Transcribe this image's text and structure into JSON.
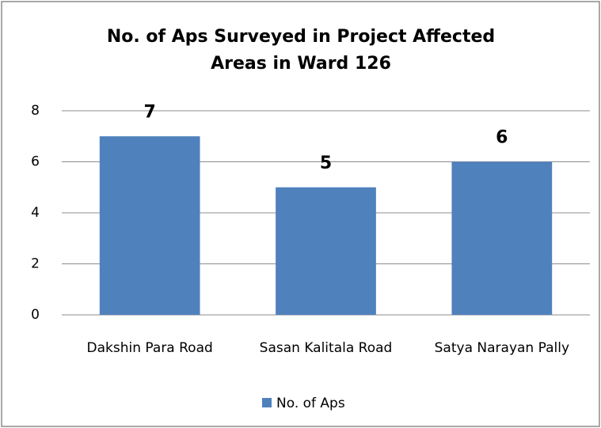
{
  "chart_data": {
    "type": "bar",
    "title": "No. of Aps Surveyed in Project Affected Areas in Ward 126",
    "categories": [
      "Dakshin Para Road",
      "Sasan Kalitala Road",
      "Satya Narayan Pally"
    ],
    "series": [
      {
        "name": "No. of Aps",
        "color": "#4f81bd",
        "values": [
          7,
          5,
          6
        ]
      }
    ],
    "ylim": [
      0,
      8
    ],
    "yticks": [
      0,
      2,
      4,
      6,
      8
    ],
    "grid": true,
    "legend": "bottom"
  }
}
